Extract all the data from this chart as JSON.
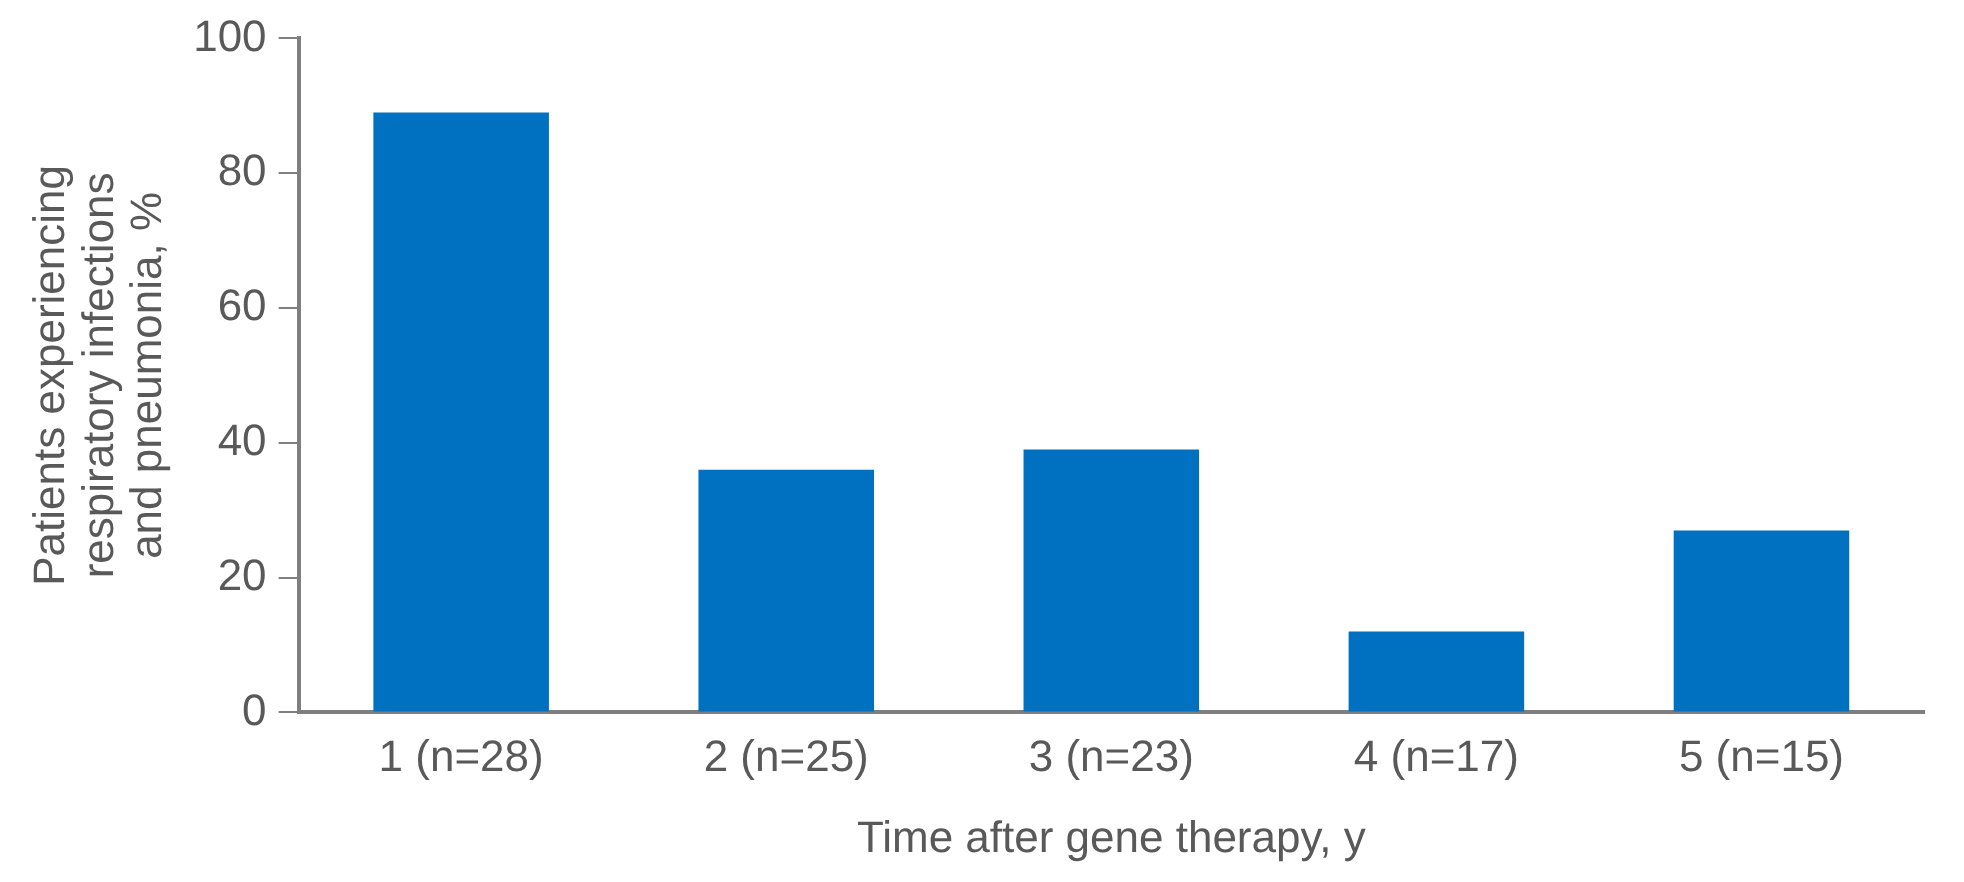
{
  "chart_data": {
    "type": "bar",
    "xlabel": "Time after gene therapy, y",
    "ylabel": "Patients experiencing respiratory infections and pneumonia, %",
    "categories": [
      "1 (n=28)",
      "2 (n=25)",
      "3 (n=23)",
      "4 (n=17)",
      "5 (n=15)"
    ],
    "values": [
      89,
      36,
      39,
      12,
      27
    ],
    "color": "#0070c0",
    "ylim": [
      0,
      100
    ],
    "yticks": [
      0,
      20,
      40,
      60,
      80,
      100
    ],
    "grid": false,
    "legend": false
  }
}
